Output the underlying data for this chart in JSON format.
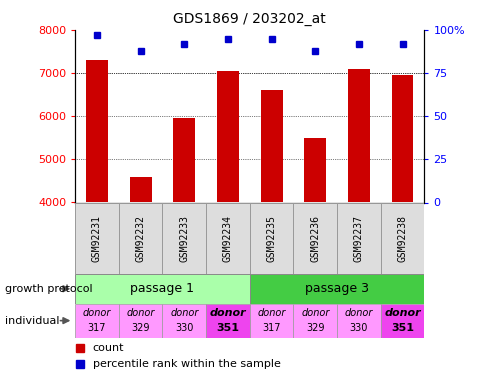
{
  "title": "GDS1869 / 203202_at",
  "samples": [
    "GSM92231",
    "GSM92232",
    "GSM92233",
    "GSM92234",
    "GSM92235",
    "GSM92236",
    "GSM92237",
    "GSM92238"
  ],
  "count_values": [
    7300,
    4600,
    5950,
    7050,
    6600,
    5500,
    7100,
    6950
  ],
  "percentile_values": [
    97,
    88,
    92,
    95,
    95,
    88,
    92,
    92
  ],
  "ylim_left": [
    4000,
    8000
  ],
  "ylim_right": [
    0,
    100
  ],
  "yticks_left": [
    4000,
    5000,
    6000,
    7000,
    8000
  ],
  "yticks_right": [
    0,
    25,
    50,
    75,
    100
  ],
  "bar_color": "#cc0000",
  "dot_color": "#0000cc",
  "passage1_color": "#aaffaa",
  "passage3_color": "#44cc44",
  "donor_light_color": "#ff99ff",
  "donor_bold_color": "#ee44ee",
  "sample_box_color": "#dddddd",
  "growth_protocol_label": "growth protocol",
  "individual_label": "individual",
  "passage1_label": "passage 1",
  "passage3_label": "passage 3",
  "donor_numbers": [
    "317",
    "329",
    "330",
    "351",
    "317",
    "329",
    "330",
    "351"
  ],
  "bold_donors": [
    3,
    7
  ],
  "legend_count": "count",
  "legend_percentile": "percentile rank within the sample",
  "bar_width": 0.5
}
